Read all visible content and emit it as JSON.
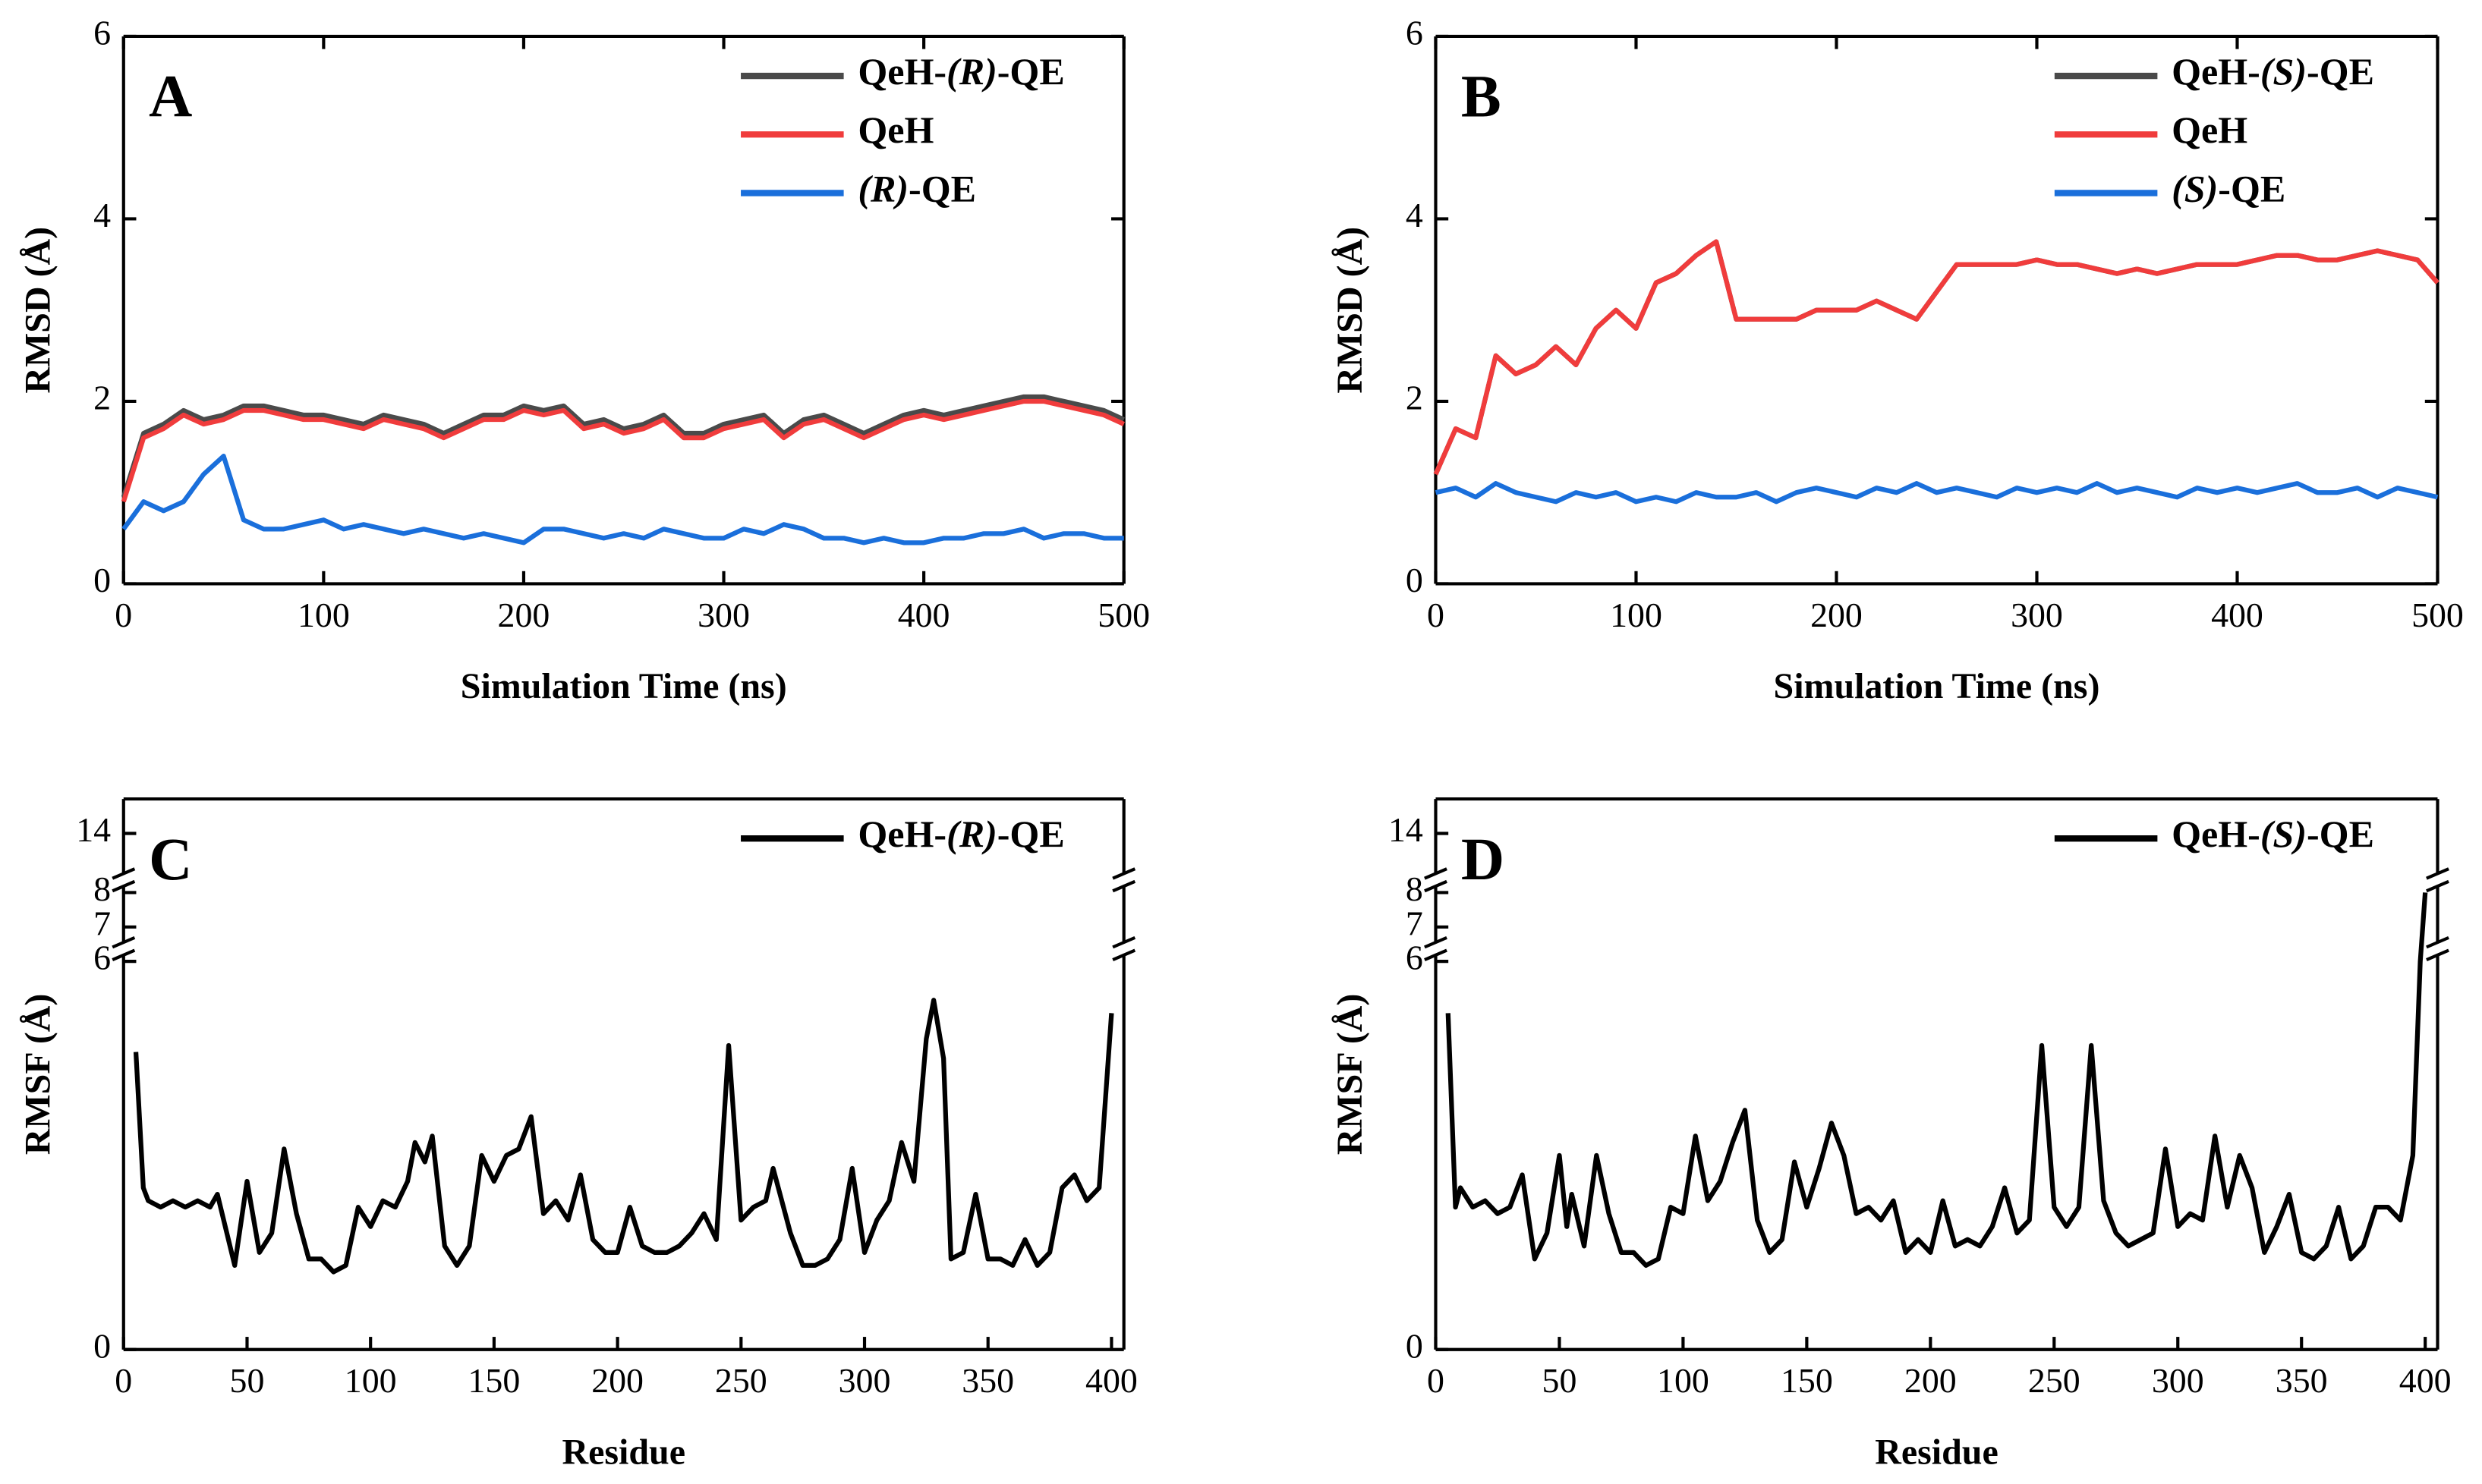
{
  "chart_data": [
    {
      "type": "line",
      "label": "A",
      "xlabel": "Simulation Time (ns)",
      "ylabel": "RMSD (Å)",
      "xlim": [
        0,
        500
      ],
      "ylim": [
        0,
        6
      ],
      "xticks": [
        0,
        100,
        200,
        300,
        400,
        500
      ],
      "yticks": [
        0,
        2,
        4,
        6
      ],
      "legend": "upper right",
      "x": [
        0,
        10,
        20,
        30,
        40,
        50,
        60,
        70,
        80,
        90,
        100,
        110,
        120,
        130,
        140,
        150,
        160,
        170,
        180,
        190,
        200,
        210,
        220,
        230,
        240,
        250,
        260,
        270,
        280,
        290,
        300,
        310,
        320,
        330,
        340,
        350,
        360,
        370,
        380,
        390,
        400,
        410,
        420,
        430,
        440,
        450,
        460,
        470,
        480,
        490,
        500
      ],
      "series": [
        {
          "name": "QeH-(R)-QE",
          "color": "#4a4a4a",
          "values": [
            0.95,
            1.65,
            1.75,
            1.9,
            1.8,
            1.85,
            1.95,
            1.95,
            1.9,
            1.85,
            1.85,
            1.8,
            1.75,
            1.85,
            1.8,
            1.75,
            1.65,
            1.75,
            1.85,
            1.85,
            1.95,
            1.9,
            1.95,
            1.75,
            1.8,
            1.7,
            1.75,
            1.85,
            1.65,
            1.65,
            1.75,
            1.8,
            1.85,
            1.65,
            1.8,
            1.85,
            1.75,
            1.65,
            1.75,
            1.85,
            1.9,
            1.85,
            1.9,
            1.95,
            2.0,
            2.05,
            2.05,
            2.0,
            1.95,
            1.9,
            1.8
          ]
        },
        {
          "name": "QeH",
          "color": "#f03c3c",
          "values": [
            0.9,
            1.6,
            1.7,
            1.85,
            1.75,
            1.8,
            1.9,
            1.9,
            1.85,
            1.8,
            1.8,
            1.75,
            1.7,
            1.8,
            1.75,
            1.7,
            1.6,
            1.7,
            1.8,
            1.8,
            1.9,
            1.85,
            1.9,
            1.7,
            1.75,
            1.65,
            1.7,
            1.8,
            1.6,
            1.6,
            1.7,
            1.75,
            1.8,
            1.6,
            1.75,
            1.8,
            1.7,
            1.6,
            1.7,
            1.8,
            1.85,
            1.8,
            1.85,
            1.9,
            1.95,
            2.0,
            2.0,
            1.95,
            1.9,
            1.85,
            1.75
          ]
        },
        {
          "name": "(R)-QE",
          "color": "#1a6fdb",
          "values": [
            0.6,
            0.9,
            0.8,
            0.9,
            1.2,
            1.4,
            0.7,
            0.6,
            0.6,
            0.65,
            0.7,
            0.6,
            0.65,
            0.6,
            0.55,
            0.6,
            0.55,
            0.5,
            0.55,
            0.5,
            0.45,
            0.6,
            0.6,
            0.55,
            0.5,
            0.55,
            0.5,
            0.6,
            0.55,
            0.5,
            0.5,
            0.6,
            0.55,
            0.65,
            0.6,
            0.5,
            0.5,
            0.45,
            0.5,
            0.45,
            0.45,
            0.5,
            0.5,
            0.55,
            0.55,
            0.6,
            0.5,
            0.55,
            0.55,
            0.5,
            0.5
          ]
        }
      ]
    },
    {
      "type": "line",
      "label": "B",
      "xlabel": "Simulation Time (ns)",
      "ylabel": "RMSD (Å)",
      "xlim": [
        0,
        500
      ],
      "ylim": [
        0,
        6
      ],
      "xticks": [
        0,
        100,
        200,
        300,
        400,
        500
      ],
      "yticks": [
        0,
        2,
        4,
        6
      ],
      "legend": "upper right",
      "x": [
        0,
        10,
        20,
        30,
        40,
        50,
        60,
        70,
        80,
        90,
        100,
        110,
        120,
        130,
        140,
        150,
        160,
        170,
        180,
        190,
        200,
        210,
        220,
        230,
        240,
        250,
        260,
        270,
        280,
        290,
        300,
        310,
        320,
        330,
        340,
        350,
        360,
        370,
        380,
        390,
        400,
        410,
        420,
        430,
        440,
        450,
        460,
        470,
        480,
        490,
        500
      ],
      "series": [
        {
          "name": "QeH-(S)-QE",
          "color": "#4a4a4a",
          "values": [
            1.2,
            1.7,
            1.6,
            2.5,
            2.3,
            2.4,
            2.6,
            2.4,
            2.8,
            3.0,
            2.8,
            3.3,
            3.4,
            3.6,
            3.75,
            2.9,
            2.9,
            2.9,
            2.9,
            3.0,
            3.0,
            3.0,
            3.1,
            3.0,
            2.9,
            3.2,
            3.5,
            3.5,
            3.5,
            3.5,
            3.55,
            3.5,
            3.5,
            3.45,
            3.4,
            3.45,
            3.4,
            3.45,
            3.5,
            3.5,
            3.5,
            3.55,
            3.6,
            3.6,
            3.55,
            3.55,
            3.6,
            3.65,
            3.6,
            3.55,
            3.3
          ]
        },
        {
          "name": "QeH",
          "color": "#f03c3c",
          "values": [
            1.2,
            1.7,
            1.6,
            2.5,
            2.3,
            2.4,
            2.6,
            2.4,
            2.8,
            3.0,
            2.8,
            3.3,
            3.4,
            3.6,
            3.75,
            2.9,
            2.9,
            2.9,
            2.9,
            3.0,
            3.0,
            3.0,
            3.1,
            3.0,
            2.9,
            3.2,
            3.5,
            3.5,
            3.5,
            3.5,
            3.55,
            3.5,
            3.5,
            3.45,
            3.4,
            3.45,
            3.4,
            3.45,
            3.5,
            3.5,
            3.5,
            3.55,
            3.6,
            3.6,
            3.55,
            3.55,
            3.6,
            3.65,
            3.6,
            3.55,
            3.3
          ]
        },
        {
          "name": "(S)-QE",
          "color": "#1a6fdb",
          "values": [
            1.0,
            1.05,
            0.95,
            1.1,
            1.0,
            0.95,
            0.9,
            1.0,
            0.95,
            1.0,
            0.9,
            0.95,
            0.9,
            1.0,
            0.95,
            0.95,
            1.0,
            0.9,
            1.0,
            1.05,
            1.0,
            0.95,
            1.05,
            1.0,
            1.1,
            1.0,
            1.05,
            1.0,
            0.95,
            1.05,
            1.0,
            1.05,
            1.0,
            1.1,
            1.0,
            1.05,
            1.0,
            0.95,
            1.05,
            1.0,
            1.05,
            1.0,
            1.05,
            1.1,
            1.0,
            1.0,
            1.05,
            0.95,
            1.05,
            1.0,
            0.95
          ]
        }
      ]
    },
    {
      "type": "line",
      "label": "C",
      "xlabel": "Residue",
      "ylabel": "RMSF (Å)",
      "xlim": [
        0,
        405
      ],
      "ylim": [
        0,
        17.5
      ],
      "ybreaks": [
        6,
        8
      ],
      "xticks": [
        0,
        50,
        100,
        150,
        200,
        250,
        300,
        350,
        400
      ],
      "yticks": [
        0,
        6,
        7,
        8,
        14
      ],
      "legend": "upper right",
      "x": [
        5,
        8,
        10,
        15,
        20,
        25,
        30,
        35,
        38,
        45,
        50,
        55,
        60,
        65,
        70,
        75,
        80,
        85,
        90,
        95,
        100,
        105,
        110,
        115,
        118,
        122,
        125,
        130,
        135,
        140,
        145,
        150,
        155,
        160,
        165,
        170,
        175,
        180,
        185,
        190,
        195,
        200,
        205,
        210,
        215,
        220,
        225,
        230,
        235,
        240,
        245,
        250,
        255,
        260,
        263,
        270,
        275,
        280,
        285,
        290,
        295,
        300,
        305,
        310,
        315,
        320,
        325,
        328,
        332,
        335,
        340,
        345,
        350,
        355,
        360,
        365,
        370,
        375,
        380,
        385,
        390,
        395,
        400
      ],
      "series": [
        {
          "name": "QeH-(R)-QE",
          "color": "#000000",
          "values": [
            4.6,
            2.5,
            2.3,
            2.2,
            2.3,
            2.2,
            2.3,
            2.2,
            2.4,
            1.3,
            2.6,
            1.5,
            1.8,
            3.1,
            2.1,
            1.4,
            1.4,
            1.2,
            1.3,
            2.2,
            1.9,
            2.3,
            2.2,
            2.6,
            3.2,
            2.9,
            3.3,
            1.6,
            1.3,
            1.6,
            3.0,
            2.6,
            3.0,
            3.1,
            3.6,
            2.1,
            2.3,
            2.0,
            2.7,
            1.7,
            1.5,
            1.5,
            2.2,
            1.6,
            1.5,
            1.5,
            1.6,
            1.8,
            2.1,
            1.7,
            4.7,
            2.0,
            2.2,
            2.3,
            2.8,
            1.8,
            1.3,
            1.3,
            1.4,
            1.7,
            2.8,
            1.5,
            2.0,
            2.3,
            3.2,
            2.6,
            4.8,
            5.4,
            4.5,
            1.4,
            1.5,
            2.4,
            1.4,
            1.4,
            1.3,
            1.7,
            1.3,
            1.5,
            2.5,
            2.7,
            2.3,
            2.5,
            5.2
          ]
        }
      ]
    },
    {
      "type": "line",
      "label": "D",
      "xlabel": "Residue",
      "ylabel": "RMSF (Å)",
      "xlim": [
        0,
        405
      ],
      "ylim": [
        0,
        17.5
      ],
      "ybreaks": [
        6,
        8
      ],
      "xticks": [
        0,
        50,
        100,
        150,
        200,
        250,
        300,
        350,
        400
      ],
      "yticks": [
        0,
        6,
        7,
        8,
        14
      ],
      "legend": "upper right",
      "x": [
        5,
        8,
        10,
        15,
        20,
        25,
        30,
        35,
        40,
        45,
        50,
        53,
        55,
        60,
        65,
        70,
        75,
        80,
        85,
        90,
        95,
        100,
        105,
        110,
        115,
        120,
        125,
        130,
        135,
        140,
        145,
        150,
        155,
        160,
        165,
        170,
        175,
        180,
        185,
        190,
        195,
        200,
        205,
        210,
        215,
        220,
        225,
        230,
        235,
        240,
        245,
        250,
        255,
        260,
        265,
        270,
        275,
        280,
        285,
        290,
        295,
        300,
        305,
        310,
        315,
        320,
        325,
        330,
        335,
        340,
        345,
        350,
        355,
        360,
        365,
        370,
        375,
        380,
        385,
        390,
        395,
        398,
        400
      ],
      "series": [
        {
          "name": "QeH-(S)-QE",
          "color": "#000000",
          "values": [
            5.2,
            2.2,
            2.5,
            2.2,
            2.3,
            2.1,
            2.2,
            2.7,
            1.4,
            1.8,
            3.0,
            1.9,
            2.4,
            1.6,
            3.0,
            2.1,
            1.5,
            1.5,
            1.3,
            1.4,
            2.2,
            2.1,
            3.3,
            2.3,
            2.6,
            3.2,
            3.7,
            2.0,
            1.5,
            1.7,
            2.9,
            2.2,
            2.8,
            3.5,
            3.0,
            2.1,
            2.2,
            2.0,
            2.3,
            1.5,
            1.7,
            1.5,
            2.3,
            1.6,
            1.7,
            1.6,
            1.9,
            2.5,
            1.8,
            2.0,
            4.7,
            2.2,
            1.9,
            2.2,
            4.7,
            2.3,
            1.8,
            1.6,
            1.7,
            1.8,
            3.1,
            1.9,
            2.1,
            2.0,
            3.3,
            2.2,
            3.0,
            2.5,
            1.5,
            1.9,
            2.4,
            1.5,
            1.4,
            1.6,
            2.2,
            1.4,
            1.6,
            2.2,
            2.2,
            2.0,
            3.0,
            6.0,
            8.0
          ]
        }
      ]
    }
  ]
}
